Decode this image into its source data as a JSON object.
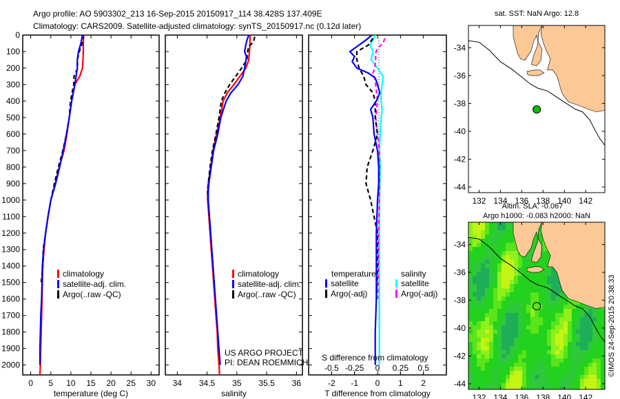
{
  "header": {
    "line1": "Argo profile: AO 5903302_213 16-Sep-2015 20150917_114 38.428S 137.409E",
    "line2": "Climatology: CARS2009. Satellite-adjusted climatology: synTS_20150917.nc (0.12d later)"
  },
  "colors": {
    "climatology": "#ff0000",
    "satellite": "#0000ff",
    "argo": "#000000",
    "sal_satellite": "#00ffff",
    "sal_argo": "#ff00ff",
    "land": "#fcc896",
    "float_marker": "#00c000"
  },
  "chart_data": [
    {
      "type": "line",
      "name": "temperature-profile",
      "xlabel": "temperature (deg C)",
      "ylabel": "",
      "xlim": [
        -2,
        32
      ],
      "ylim": [
        2060,
        0
      ],
      "xticks": [
        "0",
        "5",
        "10",
        "15",
        "20",
        "25",
        "30"
      ],
      "xtick_values": [
        0,
        5,
        10,
        15,
        20,
        25,
        30
      ],
      "yticks": [
        "0",
        "100",
        "200",
        "300",
        "400",
        "500",
        "600",
        "700",
        "800",
        "900",
        "1000",
        "1100",
        "1200",
        "1300",
        "1400",
        "1500",
        "1600",
        "1700",
        "1800",
        "1900",
        "2000"
      ],
      "ytick_values": [
        0,
        100,
        200,
        300,
        400,
        500,
        600,
        700,
        800,
        900,
        1000,
        1100,
        1200,
        1300,
        1400,
        1500,
        1600,
        1700,
        1800,
        1900,
        2000
      ],
      "legend": [
        "climatology",
        "satellite-adj. clim.",
        "Argo(..raw -QC)"
      ],
      "series": [
        {
          "name": "climatology",
          "depth": [
            0,
            50,
            100,
            150,
            200,
            250,
            300,
            400,
            500,
            600,
            700,
            800,
            900,
            1000,
            1100,
            1200,
            1300,
            1400,
            1500,
            1600,
            1700,
            1800,
            1900,
            2000,
            2060
          ],
          "values": [
            13.2,
            13.1,
            13.1,
            13.0,
            12.9,
            12.2,
            11.0,
            10.2,
            9.6,
            9.0,
            8.3,
            7.1,
            6.1,
            5.0,
            4.3,
            3.7,
            3.3,
            3.0,
            2.9,
            2.8,
            2.7,
            2.6,
            2.5,
            2.4,
            2.3
          ]
        },
        {
          "name": "satellite-adj. clim.",
          "depth": [
            0,
            50,
            100,
            150,
            200,
            250,
            300,
            400,
            500,
            600,
            700,
            800,
            900,
            1000,
            1100,
            1200,
            1300,
            1400,
            1500,
            1600,
            1700,
            1800,
            1900,
            2000
          ],
          "values": [
            12.9,
            12.5,
            11.9,
            11.6,
            11.6,
            11.3,
            11.0,
            10.2,
            9.6,
            8.9,
            8.1,
            7.2,
            6.2,
            5.0,
            4.3,
            3.7,
            3.2,
            2.9,
            2.8,
            2.7,
            2.5,
            2.4,
            2.3,
            2.3
          ]
        },
        {
          "name": "Argo(..raw -QC)",
          "depth": [
            0,
            50,
            100,
            150,
            200,
            250,
            300,
            400,
            500,
            600,
            700,
            800,
            900,
            1000,
            1100,
            1200,
            1300,
            1400,
            1500
          ],
          "values": [
            13.0,
            12.8,
            12.1,
            11.6,
            11.7,
            10.8,
            10.7,
            9.9,
            9.6,
            8.9,
            8.0,
            6.9,
            5.9,
            5.0,
            4.3,
            3.7,
            3.1,
            3.0,
            2.6
          ]
        }
      ]
    },
    {
      "type": "line",
      "name": "salinity-profile",
      "xlabel": "salinity",
      "xlim": [
        33.8,
        36.1
      ],
      "ylim": [
        2060,
        0
      ],
      "xticks": [
        "34",
        "34.5",
        "35",
        "35.5",
        "36"
      ],
      "xtick_values": [
        34,
        34.5,
        35,
        35.5,
        36
      ],
      "legend": [
        "climatology",
        "satellite-adj. clim.",
        "Argo(..raw -QC)"
      ],
      "annotation": [
        "US ARGO PROJECT",
        "PI: DEAN ROEMMICH"
      ],
      "series": [
        {
          "name": "climatology",
          "depth": [
            0,
            50,
            100,
            150,
            200,
            250,
            300,
            350,
            400,
            500,
            600,
            700,
            800,
            900,
            950,
            1000,
            1100,
            1200,
            1300,
            1400,
            1500,
            1600,
            1700,
            1800,
            1900,
            2000,
            2060
          ],
          "values": [
            35.22,
            35.22,
            35.21,
            35.2,
            35.15,
            35.05,
            34.95,
            34.84,
            34.77,
            34.72,
            34.66,
            34.6,
            34.56,
            34.52,
            34.51,
            34.51,
            34.53,
            34.55,
            34.57,
            34.59,
            34.61,
            34.63,
            34.65,
            34.67,
            34.68,
            34.7,
            34.71
          ]
        },
        {
          "name": "satellite-adj. clim.",
          "depth": [
            0,
            30,
            60,
            100,
            130,
            160,
            200,
            250,
            300,
            350,
            400,
            500,
            600,
            700,
            800,
            900,
            950,
            1000,
            1100,
            1200,
            1300,
            1400,
            1500,
            1600,
            1700,
            1800,
            1900,
            2000
          ],
          "values": [
            35.2,
            35.17,
            35.15,
            35.13,
            35.16,
            35.15,
            35.13,
            35.1,
            35.02,
            34.9,
            34.82,
            34.73,
            34.68,
            34.61,
            34.57,
            34.53,
            34.52,
            34.52,
            34.54,
            34.56,
            34.58,
            34.6,
            34.62,
            34.64,
            34.66,
            34.68,
            34.7,
            34.72
          ]
        },
        {
          "name": "Argo(..raw -QC)",
          "depth": [
            10,
            40,
            70,
            100,
            150,
            200,
            250,
            300,
            350,
            400,
            500,
            600,
            700,
            800,
            900,
            950,
            1000,
            1100,
            1200,
            1300,
            1400,
            1500
          ],
          "values": [
            35.3,
            35.28,
            35.2,
            35.18,
            35.17,
            35.08,
            34.98,
            34.88,
            34.8,
            34.74,
            34.7,
            34.65,
            34.59,
            34.55,
            34.52,
            34.51,
            34.52,
            34.54,
            34.56,
            34.58,
            34.6,
            34.62
          ]
        }
      ]
    },
    {
      "type": "line",
      "name": "difference-profile",
      "xlabel": "T difference from climatology",
      "xlabel_top": "S difference from climatology",
      "xlim": [
        -3,
        3
      ],
      "ylim": [
        2060,
        0
      ],
      "xticks": [
        "-2",
        "-1",
        "0",
        "1",
        "2"
      ],
      "xtick_values": [
        -2,
        -1,
        0,
        1,
        2
      ],
      "s_xticks": [
        "-0.5",
        "-0.25",
        "0",
        "0.25",
        "0.5"
      ],
      "s_xtick_values": [
        -0.5,
        -0.25,
        0,
        0.25,
        0.5
      ],
      "legend_temperature": {
        "title": "temperature",
        "items": [
          "satellite",
          "Argo(-adj)"
        ]
      },
      "legend_salinity": {
        "title": "salinity",
        "items": [
          "satellite",
          "Argo(-adj)"
        ]
      },
      "series": [
        {
          "name": "T satellite",
          "depth": [
            0,
            30,
            60,
            100,
            130,
            160,
            200,
            230,
            260,
            300,
            350,
            400,
            450,
            500,
            600,
            700,
            800,
            900,
            1000,
            1200,
            1400,
            1600,
            1800,
            2000
          ],
          "values": [
            -0.25,
            -0.5,
            -0.8,
            -1.2,
            -1.0,
            -1.1,
            -0.9,
            -0.4,
            -0.1,
            0,
            0.1,
            -0.05,
            -0.3,
            -0.2,
            -0.15,
            0,
            0.05,
            0.05,
            0,
            -0.05,
            -0.05,
            -0.05,
            -0.1,
            -0.1
          ]
        },
        {
          "name": "T Argo(-adj)",
          "depth": [
            20,
            60,
            100,
            150,
            200,
            250,
            300,
            350,
            400,
            500,
            600,
            700,
            800,
            900,
            1000,
            1100,
            1200,
            1400,
            1600
          ],
          "values": [
            -0.2,
            -0.4,
            -0.9,
            -0.9,
            -0.8,
            -0.6,
            -0.5,
            -0.2,
            -0.1,
            -0.1,
            0,
            -0.2,
            -0.45,
            -0.5,
            -0.3,
            -0.15,
            0,
            0,
            -0.05
          ]
        },
        {
          "name": "S satellite",
          "depth": [
            0,
            30,
            60,
            100,
            150,
            200,
            250,
            300,
            350,
            400,
            450,
            500,
            600,
            700,
            800,
            1000,
            1200,
            1400,
            1600,
            1800,
            2000
          ],
          "values": [
            -0.02,
            -0.05,
            -0.08,
            -0.05,
            -0.07,
            0,
            0.06,
            0.05,
            0.04,
            0.04,
            0.05,
            0.04,
            0.03,
            0.02,
            0.03,
            0.02,
            0.02,
            0.02,
            0.02,
            0.02,
            0.02
          ]
        },
        {
          "name": "S Argo(-adj)",
          "depth": [
            20,
            50,
            80,
            110,
            150,
            200,
            230,
            260,
            300,
            350,
            400,
            500,
            600,
            700,
            800,
            900,
            1000,
            1200,
            1400,
            1600
          ],
          "values": [
            0.08,
            0.06,
            0.0,
            -0.02,
            -0.02,
            -0.03,
            -0.05,
            -0.03,
            -0.02,
            -0.01,
            0,
            -0.02,
            0,
            0.02,
            0.02,
            0.02,
            0.02,
            0.01,
            0.01,
            0
          ]
        }
      ]
    },
    {
      "type": "map",
      "name": "sst-map",
      "title": "sat. SST: NaN Argo: 12.8",
      "xlim": [
        131,
        143.8
      ],
      "ylim": [
        -44.4,
        -32.4
      ],
      "xticks": [
        "132",
        "134",
        "136",
        "138",
        "140",
        "142"
      ],
      "xtick_values": [
        132,
        134,
        136,
        138,
        140,
        142
      ],
      "yticks": [
        "-34",
        "-36",
        "-38",
        "-40",
        "-42",
        "-44"
      ],
      "ytick_values": [
        -34,
        -36,
        -38,
        -40,
        -42,
        -44
      ],
      "float_position": {
        "lon": 137.409,
        "lat": -38.428
      }
    },
    {
      "type": "heatmap",
      "name": "sla-map",
      "title_line1": "Altim. SLA: -0.067",
      "title_line2": "Argo h1000: -0.083 h2000: NaN",
      "xlim": [
        131,
        143.8
      ],
      "ylim": [
        -44.4,
        -32.4
      ],
      "xticks": [
        "132",
        "134",
        "136",
        "138",
        "140",
        "142"
      ],
      "xtick_values": [
        132,
        134,
        136,
        138,
        140,
        142
      ],
      "yticks": [
        "-34",
        "-36",
        "-38",
        "-40",
        "-42",
        "-44"
      ],
      "ytick_values": [
        -34,
        -36,
        -38,
        -40,
        -42,
        -44
      ],
      "float_position": {
        "lon": 137.409,
        "lat": -38.428
      }
    }
  ],
  "footer": {
    "credit": "©IMOS 24-Sep-2015 20:38:33"
  }
}
